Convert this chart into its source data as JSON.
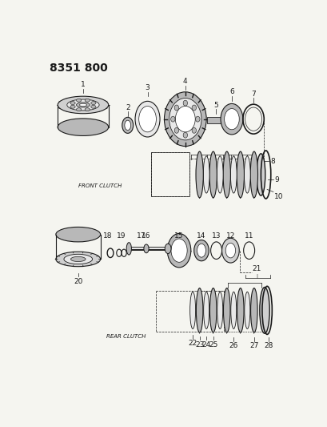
{
  "title": "8351 800",
  "bg": "#f5f5f0",
  "dark": "#1a1a1a",
  "fig_w": 4.1,
  "fig_h": 5.33,
  "dpi": 100
}
